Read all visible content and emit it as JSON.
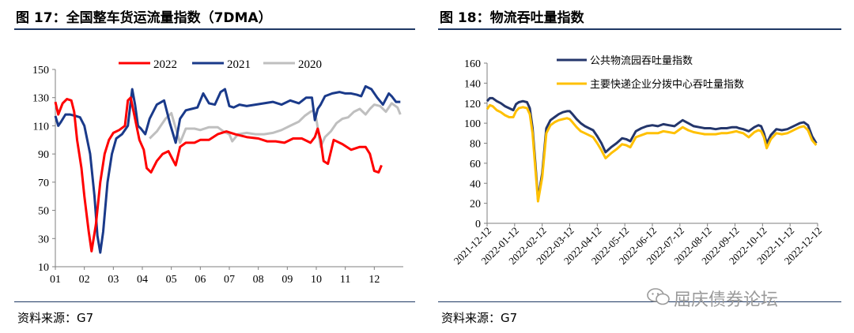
{
  "left": {
    "title": "图 17：全国整车货运流量指数（7DMA）",
    "source": "资料来源：G7"
  },
  "right": {
    "title": "图 18：物流吞吐量指数",
    "source": "资料来源：G7"
  },
  "watermark": {
    "text": "屈庆债券论坛",
    "icon": "wechat-icon"
  },
  "colors": {
    "red": "#ff0000",
    "navy": "#1a3a8a",
    "gray": "#bfbfbf",
    "navy2": "#24366b",
    "yellow": "#ffc000",
    "rule": "#1f3864"
  },
  "chart_data": [
    {
      "type": "line",
      "title": "全国整车货运流量指数（7DMA）",
      "x_range": [
        1,
        13
      ],
      "categories": [
        "01",
        "02",
        "03",
        "04",
        "05",
        "06",
        "07",
        "08",
        "09",
        "10",
        "11",
        "12"
      ],
      "yticks": [
        150,
        130,
        110,
        90,
        70,
        50,
        30,
        10
      ],
      "ylim": [
        10,
        150
      ],
      "legend_position": "top",
      "series": [
        {
          "name": "2022",
          "color": "#ff0000",
          "x": [
            1.0,
            1.1,
            1.25,
            1.4,
            1.55,
            1.65,
            1.75,
            1.9,
            2.0,
            2.15,
            2.25,
            2.4,
            2.55,
            2.7,
            2.85,
            3.0,
            3.2,
            3.4,
            3.5,
            3.6,
            3.75,
            3.9,
            4.05,
            4.15,
            4.3,
            4.5,
            4.7,
            4.9,
            5.05,
            5.15,
            5.3,
            5.5,
            5.8,
            6.0,
            6.3,
            6.6,
            6.9,
            7.2,
            7.6,
            8.0,
            8.3,
            8.6,
            8.9,
            9.0,
            9.2,
            9.5,
            9.8,
            9.95,
            10.05,
            10.15,
            10.25,
            10.4,
            10.6,
            10.9,
            11.2,
            11.5,
            11.7,
            11.85,
            12.0,
            12.15,
            12.25
          ],
          "y": [
            127,
            118,
            126,
            129,
            128,
            120,
            100,
            80,
            60,
            35,
            21,
            40,
            70,
            90,
            100,
            105,
            107,
            110,
            128,
            130,
            115,
            100,
            93,
            80,
            77,
            85,
            90,
            92,
            86,
            82,
            95,
            98,
            98,
            100,
            100,
            104,
            106,
            104,
            102,
            101,
            99,
            99,
            98,
            99,
            101,
            101,
            98,
            102,
            108,
            100,
            85,
            83,
            100,
            97,
            93,
            95,
            95,
            90,
            78,
            77,
            82
          ]
        },
        {
          "name": "2021",
          "color": "#1a3a8a",
          "x": [
            1.0,
            1.1,
            1.2,
            1.35,
            1.5,
            1.7,
            1.85,
            2.0,
            2.2,
            2.35,
            2.45,
            2.55,
            2.65,
            2.8,
            2.95,
            3.1,
            3.3,
            3.5,
            3.65,
            3.75,
            3.85,
            3.95,
            4.1,
            4.25,
            4.5,
            4.75,
            4.95,
            5.05,
            5.15,
            5.3,
            5.5,
            5.7,
            5.9,
            6.1,
            6.3,
            6.5,
            6.7,
            6.85,
            7.0,
            7.15,
            7.35,
            7.6,
            7.9,
            8.2,
            8.5,
            8.8,
            9.1,
            9.4,
            9.65,
            9.85,
            9.95,
            10.05,
            10.15,
            10.3,
            10.55,
            10.8,
            11.0,
            11.2,
            11.4,
            11.55,
            11.7,
            11.9,
            12.1,
            12.3,
            12.5,
            12.6,
            12.75,
            12.9
          ],
          "y": [
            117,
            110,
            113,
            118,
            118,
            117,
            116,
            110,
            90,
            60,
            32,
            20,
            35,
            70,
            90,
            101,
            104,
            110,
            136,
            125,
            110,
            108,
            104,
            115,
            125,
            128,
            112,
            105,
            98,
            115,
            121,
            122,
            123,
            133,
            126,
            125,
            134,
            136,
            124,
            123,
            125,
            124,
            125,
            126,
            127,
            125,
            128,
            126,
            130,
            130,
            114,
            122,
            125,
            131,
            133,
            134,
            133,
            133,
            132,
            131,
            138,
            136,
            130,
            125,
            133,
            131,
            127,
            127
          ]
        },
        {
          "name": "2020",
          "color": "#bfbfbf",
          "x": [
            4.25,
            4.5,
            4.8,
            5.0,
            5.2,
            5.3,
            5.5,
            5.8,
            6.0,
            6.3,
            6.6,
            6.8,
            6.9,
            7.0,
            7.1,
            7.3,
            7.6,
            7.9,
            8.2,
            8.5,
            8.8,
            9.1,
            9.4,
            9.6,
            9.8,
            9.9,
            10.0,
            10.15,
            10.3,
            10.5,
            10.7,
            10.9,
            11.1,
            11.3,
            11.5,
            11.7,
            11.85,
            12.0,
            12.2,
            12.4,
            12.6,
            12.8,
            12.9
          ],
          "y": [
            101,
            106,
            115,
            119,
            105,
            98,
            108,
            108,
            107,
            109,
            109,
            106,
            105,
            104,
            99,
            104,
            105,
            104,
            104,
            105,
            107,
            110,
            113,
            117,
            120,
            121,
            115,
            95,
            102,
            106,
            112,
            115,
            116,
            120,
            122,
            118,
            122,
            125,
            124,
            120,
            126,
            123,
            118
          ]
        }
      ]
    },
    {
      "type": "line",
      "title": "物流吞吐量指数",
      "x_range": [
        0,
        12
      ],
      "categories": [
        "2021-12-12",
        "2022-01-12",
        "2022-02-12",
        "2022-03-12",
        "2022-04-12",
        "2022-05-12",
        "2022-06-12",
        "2022-07-12",
        "2022-08-12",
        "2022-09-12",
        "2022-10-12",
        "2022-11-12",
        "2022-12-12"
      ],
      "yticks": [
        160,
        140,
        120,
        100,
        80,
        60,
        40,
        20,
        0
      ],
      "ylim": [
        0,
        160
      ],
      "legend_position": "top-left",
      "series": [
        {
          "name": "公共物流园吞吐量指数",
          "color": "#24366b",
          "x": [
            0.0,
            0.1,
            0.2,
            0.35,
            0.5,
            0.65,
            0.8,
            0.95,
            1.05,
            1.15,
            1.3,
            1.45,
            1.55,
            1.65,
            1.75,
            1.85,
            2.0,
            2.15,
            2.3,
            2.45,
            2.6,
            2.75,
            2.9,
            3.0,
            3.1,
            3.25,
            3.4,
            3.55,
            3.7,
            3.85,
            4.0,
            4.15,
            4.3,
            4.5,
            4.7,
            4.9,
            5.05,
            5.2,
            5.4,
            5.6,
            5.8,
            6.0,
            6.2,
            6.4,
            6.6,
            6.8,
            6.95,
            7.1,
            7.3,
            7.5,
            7.7,
            7.9,
            8.1,
            8.3,
            8.5,
            8.7,
            8.9,
            9.05,
            9.15,
            9.3,
            9.5,
            9.7,
            9.85,
            9.95,
            10.05,
            10.15,
            10.3,
            10.5,
            10.7,
            10.9,
            11.05,
            11.2,
            11.35,
            11.5,
            11.65,
            11.8,
            11.95
          ],
          "y": [
            122,
            125,
            125,
            122,
            120,
            117,
            115,
            113,
            119,
            121,
            122,
            121,
            115,
            95,
            60,
            24,
            50,
            95,
            103,
            106,
            109,
            111,
            112,
            112,
            109,
            104,
            100,
            97,
            95,
            93,
            87,
            80,
            71,
            76,
            80,
            85,
            84,
            82,
            92,
            95,
            97,
            98,
            97,
            99,
            98,
            97,
            100,
            103,
            100,
            97,
            96,
            95,
            95,
            94,
            95,
            95,
            96,
            96,
            95,
            94,
            92,
            96,
            98,
            97,
            90,
            80,
            88,
            94,
            93,
            94,
            96,
            98,
            100,
            101,
            98,
            87,
            80
          ]
        },
        {
          "name": "主要快递企业分拨中心吞吐量指数",
          "color": "#ffc000",
          "x": [
            0.0,
            0.1,
            0.2,
            0.35,
            0.5,
            0.65,
            0.8,
            0.95,
            1.05,
            1.15,
            1.3,
            1.45,
            1.55,
            1.65,
            1.75,
            1.85,
            2.0,
            2.15,
            2.3,
            2.45,
            2.6,
            2.75,
            2.9,
            3.0,
            3.1,
            3.25,
            3.4,
            3.55,
            3.7,
            3.85,
            4.0,
            4.15,
            4.3,
            4.5,
            4.7,
            4.9,
            5.05,
            5.2,
            5.4,
            5.6,
            5.8,
            6.0,
            6.2,
            6.4,
            6.6,
            6.8,
            6.95,
            7.1,
            7.3,
            7.5,
            7.7,
            7.9,
            8.1,
            8.3,
            8.5,
            8.7,
            8.9,
            9.05,
            9.15,
            9.3,
            9.5,
            9.7,
            9.85,
            9.95,
            10.05,
            10.15,
            10.3,
            10.5,
            10.7,
            10.9,
            11.05,
            11.2,
            11.35,
            11.5,
            11.65,
            11.8,
            11.95
          ],
          "y": [
            114,
            118,
            117,
            113,
            111,
            108,
            106,
            106,
            112,
            115,
            116,
            115,
            109,
            90,
            55,
            22,
            46,
            90,
            98,
            101,
            103,
            104,
            105,
            104,
            101,
            96,
            92,
            90,
            88,
            86,
            80,
            73,
            65,
            70,
            74,
            79,
            78,
            76,
            86,
            88,
            90,
            90,
            90,
            92,
            91,
            90,
            93,
            96,
            93,
            91,
            90,
            89,
            89,
            89,
            90,
            90,
            91,
            92,
            91,
            90,
            86,
            91,
            93,
            92,
            86,
            75,
            84,
            90,
            89,
            90,
            92,
            94,
            96,
            97,
            93,
            83,
            78
          ]
        }
      ]
    }
  ]
}
